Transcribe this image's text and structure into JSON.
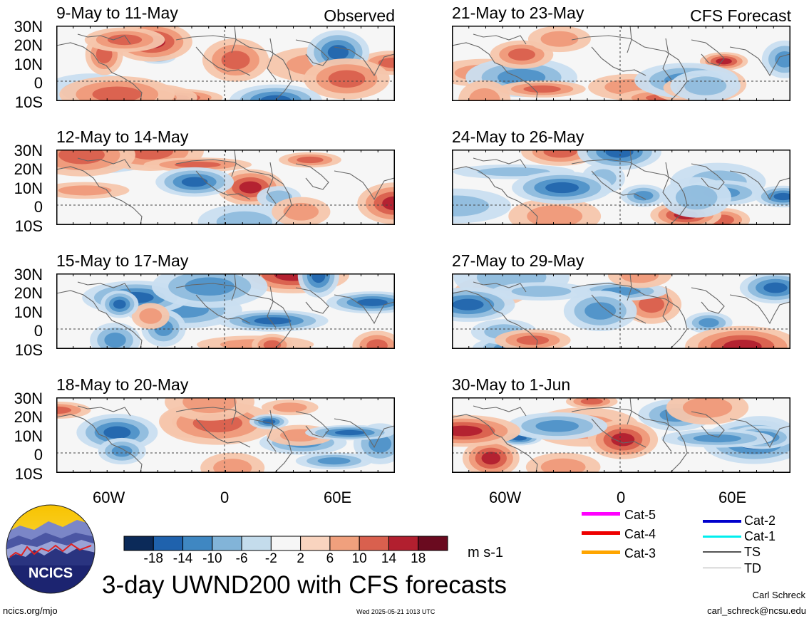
{
  "panels": [
    {
      "title": "9-May to 11-May",
      "corner": "Observed",
      "seed": 1
    },
    {
      "title": "12-May to 14-May",
      "corner": "",
      "seed": 2
    },
    {
      "title": "15-May to 17-May",
      "corner": "",
      "seed": 3
    },
    {
      "title": "18-May to 20-May",
      "corner": "",
      "seed": 4
    },
    {
      "title": "21-May to 23-May",
      "corner": "CFS Forecast",
      "seed": 5
    },
    {
      "title": "24-May to 26-May",
      "corner": "",
      "seed": 6
    },
    {
      "title": "27-May to 29-May",
      "corner": "",
      "seed": 7
    },
    {
      "title": "30-May to 1-Jun",
      "corner": "",
      "seed": 8
    }
  ],
  "lat_labels": [
    "30N",
    "20N",
    "10N",
    "0",
    "10S"
  ],
  "lon_labels": [
    "60W",
    "0",
    "60E"
  ],
  "colorbar": {
    "ticks": [
      "-18",
      "-14",
      "-10",
      "-6",
      "-2",
      "2",
      "6",
      "10",
      "14",
      "18"
    ],
    "colors": [
      "#0b2a59",
      "#1f62ad",
      "#3f87c2",
      "#82b4d8",
      "#c4dcec",
      "#f6f6f6",
      "#f9d4bf",
      "#f0a07d",
      "#d9604e",
      "#b21f2f",
      "#6a0a1f"
    ],
    "units": "m s-1"
  },
  "legend": [
    {
      "label": "Cat-5",
      "color": "#ff00ff"
    },
    {
      "label": "Cat-4",
      "color": "#ee0000"
    },
    {
      "label": "Cat-3",
      "color": "#ffa500"
    },
    {
      "label": "Cat-2",
      "color": "#0000cc"
    },
    {
      "label": "Cat-1",
      "color": "#00eeee"
    },
    {
      "label": "TS",
      "color": "#555555"
    },
    {
      "label": "TD",
      "color": "#aaaaaa"
    }
  ],
  "logo": {
    "text": "NCICS"
  },
  "title": "3-day UWND200 with CFS forecasts",
  "footer": {
    "url": "ncics.org/mjo",
    "timestamp": "Wed 2025-05-21 1013 UTC",
    "author": "Carl Schreck",
    "email": "carl_schreck@ncsu.edu"
  }
}
